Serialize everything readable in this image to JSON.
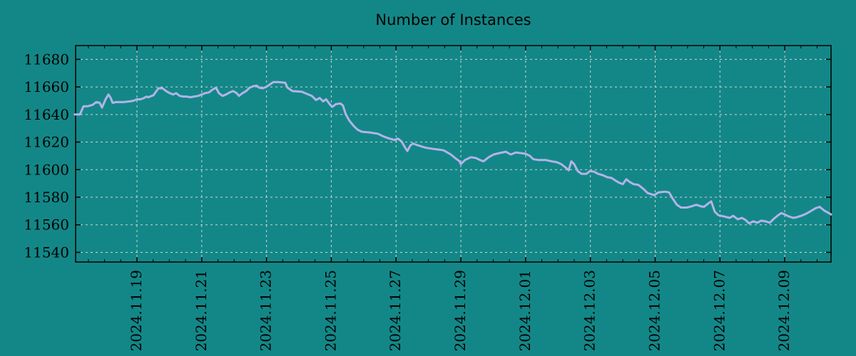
{
  "colors": {
    "background": "#138787",
    "line": "#B3B3E8",
    "grid": "#D4D4D4",
    "axis": "#000000",
    "text": "#000000"
  },
  "chart_data": {
    "type": "line",
    "title": "Number of Instances",
    "xlabel": "",
    "ylabel": "",
    "grid": true,
    "legend": false,
    "x_unit": "days since 2024-11-17 00:00",
    "xlim": [
      0.106,
      23.43
    ],
    "ylim": [
      11533,
      11690
    ],
    "y_ticks": [
      11540,
      11560,
      11580,
      11600,
      11620,
      11640,
      11660,
      11680
    ],
    "x_minor_step": 0.5,
    "x_ticks": [
      {
        "day": 2,
        "label": "2024.11.19"
      },
      {
        "day": 4,
        "label": "2024.11.21"
      },
      {
        "day": 6,
        "label": "2024.11.23"
      },
      {
        "day": 8,
        "label": "2024.11.25"
      },
      {
        "day": 10,
        "label": "2024.11.27"
      },
      {
        "day": 12,
        "label": "2024.11.29"
      },
      {
        "day": 14,
        "label": "2024.12.01"
      },
      {
        "day": 16,
        "label": "2024.12.03"
      },
      {
        "day": 18,
        "label": "2024.12.05"
      },
      {
        "day": 20,
        "label": "2024.12.07"
      },
      {
        "day": 22,
        "label": "2024.12.09"
      }
    ],
    "series": [
      {
        "name": "instances",
        "points": [
          [
            0.08,
            11640
          ],
          [
            0.24,
            11640
          ],
          [
            0.35,
            11646
          ],
          [
            0.48,
            11646
          ],
          [
            0.63,
            11647
          ],
          [
            0.74,
            11649
          ],
          [
            0.85,
            11648.5
          ],
          [
            0.92,
            11645
          ],
          [
            1.03,
            11651
          ],
          [
            1.12,
            11654.5
          ],
          [
            1.19,
            11652
          ],
          [
            1.25,
            11648.5
          ],
          [
            1.36,
            11649
          ],
          [
            1.58,
            11649
          ],
          [
            1.78,
            11649.5
          ],
          [
            1.89,
            11650
          ],
          [
            2.0,
            11651
          ],
          [
            2.11,
            11651
          ],
          [
            2.22,
            11652
          ],
          [
            2.29,
            11653
          ],
          [
            2.35,
            11652.5
          ],
          [
            2.51,
            11654
          ],
          [
            2.66,
            11659
          ],
          [
            2.79,
            11659
          ],
          [
            2.9,
            11657
          ],
          [
            3.01,
            11655.5
          ],
          [
            3.12,
            11654.5
          ],
          [
            3.21,
            11655.5
          ],
          [
            3.32,
            11653.5
          ],
          [
            3.43,
            11653
          ],
          [
            3.54,
            11653
          ],
          [
            3.65,
            11652.5
          ],
          [
            3.76,
            11653
          ],
          [
            3.89,
            11653.5
          ],
          [
            4.0,
            11654.5
          ],
          [
            4.11,
            11655.5
          ],
          [
            4.22,
            11656
          ],
          [
            4.33,
            11658
          ],
          [
            4.44,
            11659.5
          ],
          [
            4.53,
            11655.5
          ],
          [
            4.64,
            11653.5
          ],
          [
            4.75,
            11654.5
          ],
          [
            4.86,
            11656
          ],
          [
            4.97,
            11657
          ],
          [
            5.08,
            11655.5
          ],
          [
            5.15,
            11653.5
          ],
          [
            5.26,
            11655.5
          ],
          [
            5.37,
            11657
          ],
          [
            5.48,
            11659.5
          ],
          [
            5.59,
            11660.5
          ],
          [
            5.7,
            11661
          ],
          [
            5.77,
            11659.5
          ],
          [
            5.88,
            11659
          ],
          [
            5.99,
            11660
          ],
          [
            6.21,
            11663.5
          ],
          [
            6.36,
            11663.5
          ],
          [
            6.58,
            11663
          ],
          [
            6.65,
            11659.5
          ],
          [
            6.8,
            11657
          ],
          [
            7.09,
            11656.5
          ],
          [
            7.4,
            11653.5
          ],
          [
            7.53,
            11650.5
          ],
          [
            7.64,
            11652
          ],
          [
            7.75,
            11649.5
          ],
          [
            7.84,
            11651
          ],
          [
            7.95,
            11647.5
          ],
          [
            8.03,
            11645.5
          ],
          [
            8.14,
            11647.5
          ],
          [
            8.28,
            11648
          ],
          [
            8.36,
            11646.5
          ],
          [
            8.45,
            11640
          ],
          [
            8.56,
            11635.5
          ],
          [
            8.7,
            11631.5
          ],
          [
            8.81,
            11629
          ],
          [
            8.94,
            11627.5
          ],
          [
            9.18,
            11627
          ],
          [
            9.44,
            11626
          ],
          [
            9.62,
            11624
          ],
          [
            9.8,
            11622.5
          ],
          [
            9.95,
            11621.5
          ],
          [
            10.06,
            11622.5
          ],
          [
            10.17,
            11620.5
          ],
          [
            10.28,
            11616
          ],
          [
            10.35,
            11613.5
          ],
          [
            10.44,
            11617.5
          ],
          [
            10.52,
            11619
          ],
          [
            10.63,
            11618
          ],
          [
            10.77,
            11617
          ],
          [
            10.9,
            11616
          ],
          [
            11.03,
            11615.5
          ],
          [
            11.16,
            11615
          ],
          [
            11.34,
            11614.5
          ],
          [
            11.47,
            11614
          ],
          [
            11.58,
            11612.5
          ],
          [
            11.69,
            11611
          ],
          [
            11.82,
            11608.5
          ],
          [
            11.96,
            11606
          ],
          [
            12.0,
            11604
          ],
          [
            12.13,
            11607
          ],
          [
            12.31,
            11609
          ],
          [
            12.46,
            11608.5
          ],
          [
            12.59,
            11607
          ],
          [
            12.7,
            11606
          ],
          [
            12.86,
            11609
          ],
          [
            13.01,
            11611
          ],
          [
            13.19,
            11612
          ],
          [
            13.39,
            11613
          ],
          [
            13.54,
            11611
          ],
          [
            13.7,
            11612.5
          ],
          [
            13.85,
            11612
          ],
          [
            14.0,
            11611.5
          ],
          [
            14.13,
            11610
          ],
          [
            14.24,
            11607.5
          ],
          [
            14.4,
            11607
          ],
          [
            14.62,
            11607
          ],
          [
            14.8,
            11606
          ],
          [
            14.95,
            11605.5
          ],
          [
            15.1,
            11604
          ],
          [
            15.24,
            11601.5
          ],
          [
            15.33,
            11599.5
          ],
          [
            15.41,
            11606
          ],
          [
            15.5,
            11604
          ],
          [
            15.61,
            11599
          ],
          [
            15.72,
            11597
          ],
          [
            15.88,
            11597
          ],
          [
            15.99,
            11599
          ],
          [
            16.12,
            11598.5
          ],
          [
            16.23,
            11597
          ],
          [
            16.38,
            11596
          ],
          [
            16.52,
            11594.5
          ],
          [
            16.65,
            11594
          ],
          [
            16.78,
            11592
          ],
          [
            16.89,
            11590.5
          ],
          [
            17.0,
            11589.5
          ],
          [
            17.11,
            11593
          ],
          [
            17.22,
            11591
          ],
          [
            17.33,
            11589.5
          ],
          [
            17.48,
            11589
          ],
          [
            17.64,
            11586
          ],
          [
            17.77,
            11583
          ],
          [
            17.97,
            11581.5
          ],
          [
            18.1,
            11583.5
          ],
          [
            18.3,
            11584
          ],
          [
            18.43,
            11583.5
          ],
          [
            18.54,
            11579
          ],
          [
            18.67,
            11574.5
          ],
          [
            18.8,
            11572.5
          ],
          [
            18.98,
            11572.5
          ],
          [
            19.14,
            11573.5
          ],
          [
            19.27,
            11574.5
          ],
          [
            19.4,
            11573.5
          ],
          [
            19.51,
            11573
          ],
          [
            19.64,
            11575.5
          ],
          [
            19.73,
            11577
          ],
          [
            19.84,
            11569.5
          ],
          [
            19.95,
            11567
          ],
          [
            20.13,
            11566
          ],
          [
            20.3,
            11565
          ],
          [
            20.41,
            11566.5
          ],
          [
            20.55,
            11564
          ],
          [
            20.68,
            11565
          ],
          [
            20.79,
            11563.5
          ],
          [
            20.9,
            11561
          ],
          [
            21.03,
            11562.5
          ],
          [
            21.16,
            11561.5
          ],
          [
            21.27,
            11563
          ],
          [
            21.41,
            11562.5
          ],
          [
            21.54,
            11561.5
          ],
          [
            21.67,
            11564.5
          ],
          [
            21.8,
            11567
          ],
          [
            21.89,
            11568.5
          ],
          [
            22.0,
            11567.5
          ],
          [
            22.13,
            11566
          ],
          [
            22.26,
            11565
          ],
          [
            22.37,
            11565.5
          ],
          [
            22.51,
            11566.5
          ],
          [
            22.66,
            11568
          ],
          [
            22.81,
            11570
          ],
          [
            22.95,
            11572
          ],
          [
            23.08,
            11573
          ],
          [
            23.21,
            11570.5
          ],
          [
            23.36,
            11568.5
          ],
          [
            23.43,
            11567.5
          ]
        ]
      }
    ]
  }
}
